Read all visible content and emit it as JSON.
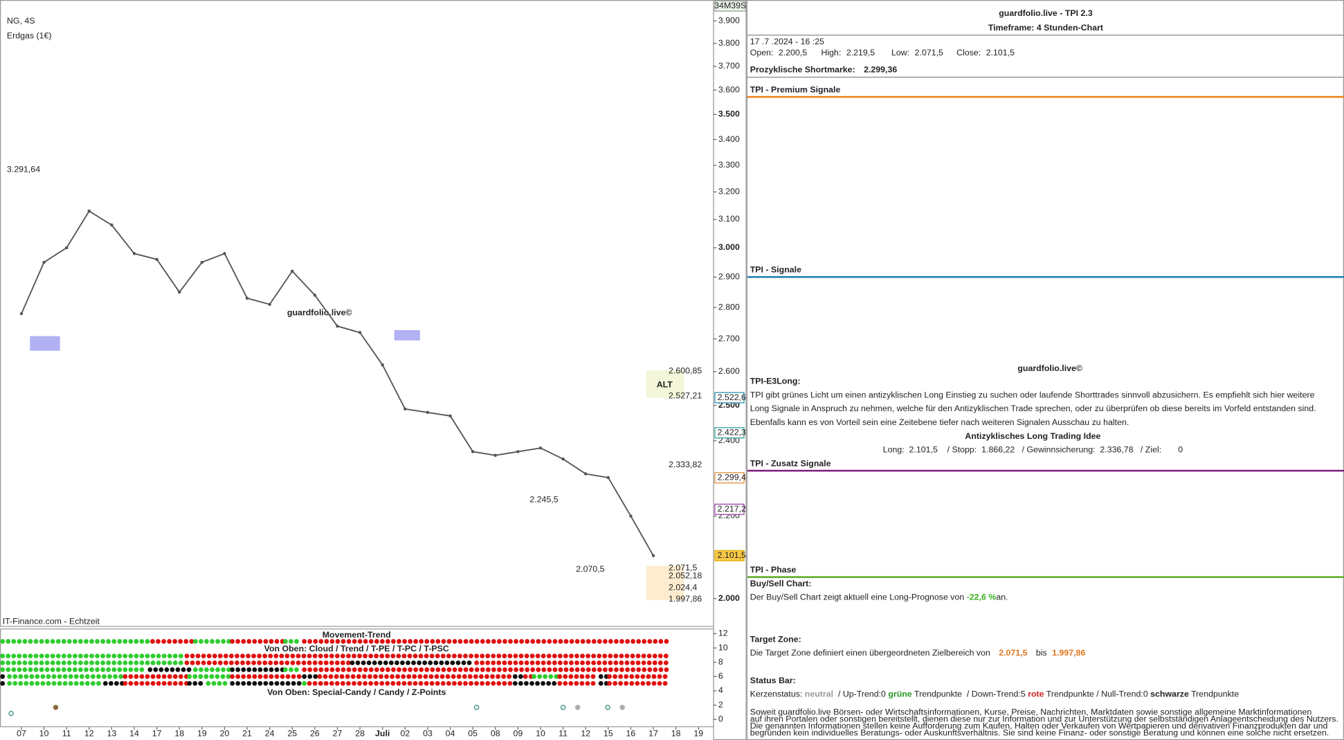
{
  "chart_data": {
    "type": "line",
    "title": "NG, 4S",
    "subtitle": "Erdgas (1€)",
    "color": "#555555",
    "log_scale": true,
    "categories": [
      "07",
      "10",
      "11",
      "12",
      "13",
      "14",
      "17",
      "18",
      "19",
      "20",
      "21",
      "24",
      "25",
      "26",
      "27",
      "28",
      "Juli",
      "02",
      "03",
      "04",
      "05",
      "08",
      "09",
      "10",
      "11",
      "12",
      "15",
      "16",
      "17",
      "18",
      "19"
    ],
    "values": [
      2780,
      2950,
      3000,
      3130,
      3080,
      2980,
      2960,
      2850,
      2950,
      2980,
      2830,
      2810,
      2920,
      2840,
      2740,
      2720,
      2620,
      2490,
      2480,
      2470,
      2370,
      2360,
      2370,
      2380,
      2350,
      2310,
      2300,
      2200,
      2101.5,
      null,
      null
    ],
    "ylim": [
      1937.5,
      3995
    ],
    "yticks": [
      {
        "value": 2000,
        "label": "2.000"
      },
      {
        "value": 2200,
        "label": "2.200"
      },
      {
        "value": 2400,
        "label": "2.400"
      },
      {
        "value": 2500,
        "label": "2.500"
      },
      {
        "value": 2600,
        "label": "2.600"
      },
      {
        "value": 2700,
        "label": "2.700"
      },
      {
        "value": 2800,
        "label": "2.800"
      },
      {
        "value": 2900,
        "label": "2.900"
      },
      {
        "value": 3000,
        "label": "3.000"
      },
      {
        "value": 3100,
        "label": "3.100"
      },
      {
        "value": 3200,
        "label": "3.200"
      },
      {
        "value": 3300,
        "label": "3.300"
      },
      {
        "value": 3400,
        "label": "3.400"
      },
      {
        "value": 3500,
        "label": "3.500"
      },
      {
        "value": 3600,
        "label": "3.600"
      },
      {
        "value": 3700,
        "label": "3.700"
      },
      {
        "value": 3800,
        "label": "3.800"
      },
      {
        "value": 3900,
        "label": "3.900"
      }
    ],
    "price_tags": [
      {
        "value": 2522.6,
        "label": "2.522,6",
        "color": "#1a8fb0"
      },
      {
        "value": 2422.3,
        "label": "2.422,3",
        "color": "#2aa198"
      },
      {
        "value": 2299.4,
        "label": "2.299,4",
        "color": "#e08a2c"
      },
      {
        "value": 2217.2,
        "label": "2.217,2",
        "color": "#9b3fa5"
      },
      {
        "value": 2101.5,
        "label": "2.101,5",
        "color": "#e0b000"
      }
    ],
    "levels": [
      {
        "value": 2600.85,
        "label": "2.600,85",
        "color": "#999999"
      },
      {
        "value": 2527.21,
        "label": "2.527,21",
        "color": "#999999"
      },
      {
        "value": 2333.82,
        "label": "2.333,82",
        "color": "#e070d0"
      },
      {
        "value": 2071.5,
        "label": "2.071,5",
        "color": "#999999"
      },
      {
        "value": 2052.18,
        "label": "2.052,18",
        "color": "#e070d0"
      },
      {
        "value": 2024.4,
        "label": "2.024,4",
        "color": "#999999"
      },
      {
        "value": 1997.86,
        "label": "1.997,86",
        "color": "#999999"
      }
    ],
    "annotations": {
      "high": "3.291,64",
      "low1": "2.245,5",
      "low2": "2.070,5",
      "alt": "ALT",
      "timer": "34M39S",
      "source": "IT-Finance.com - Echtzeit",
      "watermark": "guardfolio.live©"
    }
  },
  "indicator": {
    "title": "Movement-Trend",
    "subtitle1": "Von Oben: Cloud / Trend / T-PE / T-PC / T-PSC",
    "subtitle2": "Von Oben: Special-Candy / Candy / Z-Points",
    "ylim": [
      0,
      12
    ],
    "yticks": [
      12,
      10,
      8,
      6,
      4,
      2,
      0
    ]
  },
  "panel": {
    "title": "guardfolio.live - TPI 2.3",
    "timeframe": "Timeframe: 4 Stunden-Chart",
    "datetime": "17 .7 .2024 - 16 :25",
    "ohlc": [
      [
        "Open:",
        "2.200,5"
      ],
      [
        "High:",
        "2.219,5"
      ],
      [
        "Low:",
        "2.071,5"
      ],
      [
        "Close:",
        "2.101,5"
      ]
    ],
    "short_label": "Prozyklische Shortmarke:",
    "short_value": "2.299,36",
    "premium": "TPI - Premium Signale",
    "signals": "TPI - Signale",
    "watermark": "guardfolio.live©",
    "e3_title": "TPI-E3Long:",
    "e3_text": [
      "TPI gibt grünes Licht um einen antizyklischen Long Einstieg zu suchen oder laufende Shorttrades sinnvoll abzusichern. Es empfiehlt sich hier weitere",
      "Long Signale in Anspruch zu nehmen, welche für den Antizyklischen Trade sprechen, oder zu überprüfen ob diese bereits im Vorfeld entstanden sind.",
      "Ebenfalls kann es von Vorteil sein eine Zeitebene tiefer nach weiteren Signalen Ausschau zu halten."
    ],
    "idea_title": "Antizyklisches Long Trading Idee",
    "idea_line": "Long:  2.101,5    / Stopp:  1.866,22   / Gewinnsicherung:  2.336,78   / Ziel:       0",
    "extra": "TPI - Zusatz Signale",
    "phase": "TPI - Phase",
    "bs_title": "Buy/Sell Chart:",
    "bs_text": [
      "Der Buy/Sell Chart zeigt aktuell eine Long-Prognose von ",
      "-22,6 %",
      "an."
    ],
    "tz_title": "Target Zone:",
    "tz_text": [
      "Die Target Zone definiert einen übergeordneten Zielbereich von",
      "2.071,5",
      "bis",
      "1.997,86"
    ],
    "sb_title": "Status Bar:",
    "sb_text": [
      "Kerzenstatus: ",
      "neutral",
      "  / Up-Trend:0 ",
      "grüne",
      " Trendpunkte  / Down-Trend:5 ",
      "rote",
      " Trendpunkte / Null-Trend:0 ",
      "schwarze",
      " Trendpunkte"
    ],
    "disclaimer": [
      "Soweit guardfolio.live Börsen- oder Wirtschaftsinformationen, Kurse, Preise, Nachrichten, Marktdaten sowie sonstige allgemeine Marktinformationen",
      "auf ihren Portalen oder sonstigen bereitstellt, dienen diese nur zur Information und zur Unterstützung der selbstständigen Anlageentscheidung des Nutzers.",
      "Die genannten Informationen stellen keine Aufforderung zum Kaufen, Halten oder Verkaufen von Wertpapieren und derivativen Finanzprodukten dar und",
      "begründen kein individuelles Beratungs- oder Auskunftsverhältnis. Sie sind keine Finanz- oder sonstige Beratung und können eine solche nicht ersetzen."
    ]
  }
}
